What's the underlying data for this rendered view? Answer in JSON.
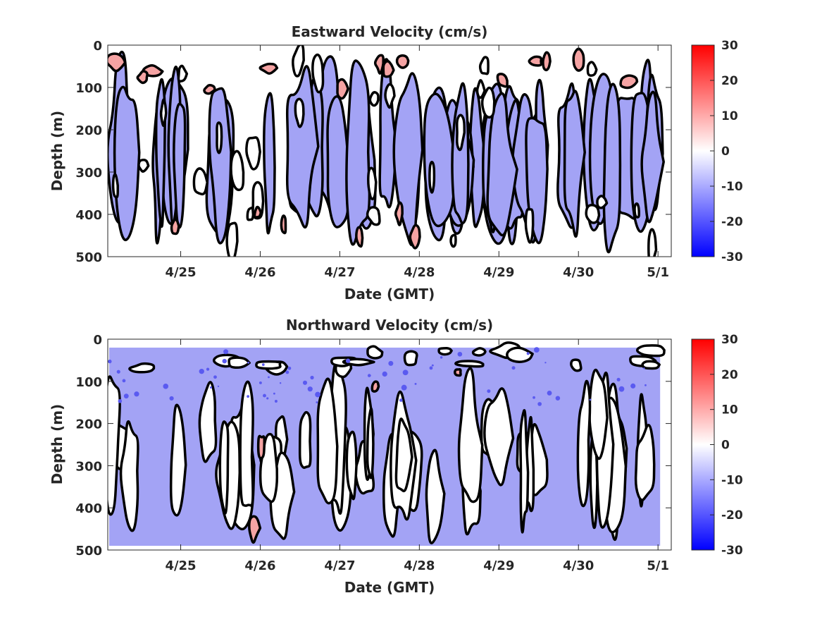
{
  "chart_data": [
    {
      "type": "heatmap",
      "title": "Eastward Velocity (cm/s)",
      "xlabel": "Date (GMT)",
      "ylabel": "Depth (m)",
      "xlim": [
        "4/24 02:00",
        "5/1 04:00"
      ],
      "ylim": [
        0,
        500
      ],
      "y_reversed": true,
      "data_depth_range": [
        20,
        490
      ],
      "x_ticks": [
        "4/25",
        "4/26",
        "4/27",
        "4/28",
        "4/29",
        "4/30",
        "5/1"
      ],
      "y_ticks": [
        "0",
        "100",
        "200",
        "300",
        "400",
        "500"
      ],
      "colorbar": {
        "ticks": [
          "30",
          "20",
          "10",
          "0",
          "-10",
          "-20",
          "-30"
        ],
        "range": [
          -30,
          30
        ],
        "colormap": "blue-white-red"
      },
      "contour_levels": [
        -5,
        5
      ],
      "fill_bands": [
        {
          "range": "< -5",
          "color": "#a3a3f5"
        },
        {
          "range": "-5 to 5",
          "color": "#ffffff"
        },
        {
          "range": "> 5",
          "color": "#f5a3a3"
        }
      ],
      "dominant_regime": "mixed negative and near-zero, positive patches near surface",
      "grid": false,
      "legend": "colorbar-right"
    },
    {
      "type": "heatmap",
      "title": "Northward Velocity (cm/s)",
      "xlabel": "Date (GMT)",
      "ylabel": "Depth (m)",
      "xlim": [
        "4/24 02:00",
        "5/1 04:00"
      ],
      "ylim": [
        0,
        500
      ],
      "y_reversed": true,
      "data_depth_range": [
        20,
        490
      ],
      "x_ticks": [
        "4/25",
        "4/26",
        "4/27",
        "4/28",
        "4/29",
        "4/30",
        "5/1"
      ],
      "y_ticks": [
        "0",
        "100",
        "200",
        "300",
        "400",
        "500"
      ],
      "colorbar": {
        "ticks": [
          "30",
          "20",
          "10",
          "0",
          "-10",
          "-20",
          "-30"
        ],
        "range": [
          -30,
          30
        ],
        "colormap": "blue-white-red"
      },
      "contour_levels": [
        -5,
        5
      ],
      "fill_bands": [
        {
          "range": "< -5",
          "color": "#a3a3f5"
        },
        {
          "range": "-5 to 5",
          "color": "#ffffff"
        },
        {
          "range": "> 5",
          "color": "#f5a3a3"
        }
      ],
      "dominant_regime": "predominantly negative, stronger negative near surface",
      "grid": false,
      "legend": "colorbar-right"
    }
  ]
}
